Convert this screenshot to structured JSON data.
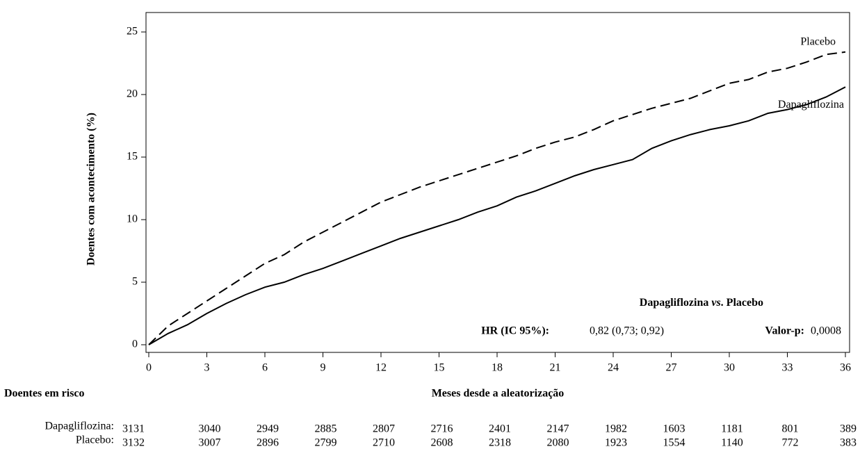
{
  "chart_data": {
    "type": "line",
    "x_label": "Meses desde a aleatorização",
    "y_label": "Doentes com acontecimento (%)",
    "x": [
      0,
      1,
      2,
      3,
      4,
      5,
      6,
      7,
      8,
      9,
      10,
      11,
      12,
      13,
      14,
      15,
      16,
      17,
      18,
      19,
      20,
      21,
      22,
      23,
      24,
      25,
      26,
      27,
      28,
      29,
      30,
      31,
      32,
      33,
      34,
      35,
      36
    ],
    "series": [
      {
        "name": "Placebo",
        "color": "#000000",
        "dashed": true,
        "values": [
          0,
          1.5,
          2.5,
          3.5,
          4.5,
          5.5,
          6.5,
          7.2,
          8.2,
          9,
          9.8,
          10.6,
          11.4,
          12,
          12.6,
          13.1,
          13.6,
          14.1,
          14.6,
          15.1,
          15.7,
          16.2,
          16.6,
          17.2,
          17.9,
          18.4,
          18.9,
          19.3,
          19.7,
          20.3,
          20.9,
          21.2,
          21.8,
          22.1,
          22.6,
          23.2,
          23.4
        ]
      },
      {
        "name": "Dapagliflozina",
        "color": "#000000",
        "dashed": false,
        "values": [
          0,
          0.9,
          1.6,
          2.5,
          3.3,
          4,
          4.6,
          5,
          5.6,
          6.1,
          6.7,
          7.3,
          7.9,
          8.5,
          9,
          9.5,
          10,
          10.6,
          11.1,
          11.8,
          12.3,
          12.9,
          13.5,
          14,
          14.4,
          14.8,
          15.7,
          16.3,
          16.8,
          17.2,
          17.5,
          17.9,
          18.5,
          18.8,
          19.2,
          19.8,
          20.6
        ]
      }
    ],
    "xlim": [
      0,
      36
    ],
    "xticks": [
      0,
      3,
      6,
      9,
      12,
      15,
      18,
      21,
      24,
      27,
      30,
      33,
      36
    ],
    "ylim": [
      0,
      25
    ],
    "yticks": [
      0,
      5,
      10,
      15,
      20,
      25
    ],
    "grid": false,
    "annotations": {
      "comparison": [
        "Dapagliflozina ",
        "vs",
        ". Placebo"
      ],
      "hr_label": "HR (IC 95%):",
      "hr_value": "0,82 (0,73; 0,92)",
      "p_label": "Valor-p:",
      "p_value": "0,0008"
    },
    "risk_table": {
      "title": "Doentes em risco",
      "rows": [
        {
          "label": "Dapagliflozina:",
          "values": [
            3131,
            3040,
            2949,
            2885,
            2807,
            2716,
            2401,
            2147,
            1982,
            1603,
            1181,
            801,
            389
          ]
        },
        {
          "label": "Placebo:",
          "values": [
            3132,
            3007,
            2896,
            2799,
            2710,
            2608,
            2318,
            2080,
            1923,
            1554,
            1140,
            772,
            383
          ]
        }
      ]
    }
  }
}
